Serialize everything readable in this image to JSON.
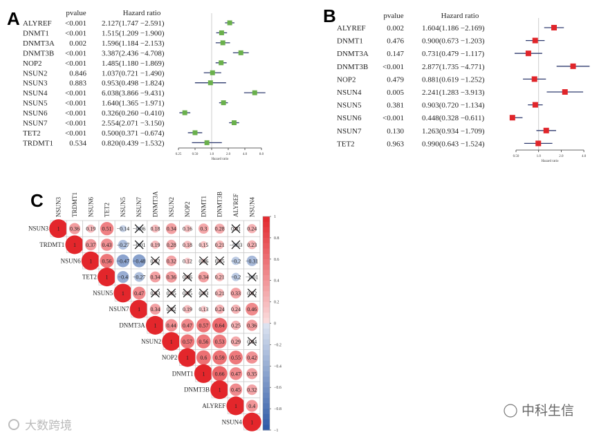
{
  "panels": {
    "a": "A",
    "b": "B",
    "c": "C"
  },
  "chart_data": [
    {
      "type": "forest",
      "panel": "A",
      "headers": {
        "pvalue": "pvalue",
        "hr": "Hazard ratio"
      },
      "xlabel": "Hazard ratio",
      "xscale": "log2",
      "xticks": [
        "0.25",
        "0.50",
        "1.0",
        "2.0",
        "4.0",
        "8.0"
      ],
      "xlim": [
        0.25,
        8.0
      ],
      "marker_color": "#6ab04c",
      "line_color": "#2e3a6e",
      "rows": [
        {
          "gene": "ALYREF",
          "p": "<0.001",
          "hr": 2.127,
          "lo": 1.747,
          "hi": 2.591,
          "text": "2.127(1.747  −2.591)"
        },
        {
          "gene": "DNMT1",
          "p": "<0.001",
          "hr": 1.515,
          "lo": 1.209,
          "hi": 1.9,
          "text": "1.515(1.209  −1.900)"
        },
        {
          "gene": "DNMT3A",
          "p": "0.002",
          "hr": 1.596,
          "lo": 1.184,
          "hi": 2.153,
          "text": "1.596(1.184  −2.153)"
        },
        {
          "gene": "DNMT3B",
          "p": "<0.001",
          "hr": 3.387,
          "lo": 2.436,
          "hi": 4.708,
          "text": "3.387(2.436  −4.708)"
        },
        {
          "gene": "NOP2",
          "p": "<0.001",
          "hr": 1.485,
          "lo": 1.18,
          "hi": 1.869,
          "text": "1.485(1.180  −1.869)"
        },
        {
          "gene": "NSUN2",
          "p": "0.846",
          "hr": 1.037,
          "lo": 0.721,
          "hi": 1.49,
          "text": "1.037(0.721  −1.490)"
        },
        {
          "gene": "NSUN3",
          "p": "0.883",
          "hr": 0.953,
          "lo": 0.498,
          "hi": 1.824,
          "text": "0.953(0.498  −1.824)"
        },
        {
          "gene": "NSUN4",
          "p": "<0.001",
          "hr": 6.038,
          "lo": 3.866,
          "hi": 9.431,
          "text": "6.038(3.866  −9.431)"
        },
        {
          "gene": "NSUN5",
          "p": "<0.001",
          "hr": 1.64,
          "lo": 1.365,
          "hi": 1.971,
          "text": "1.640(1.365  −1.971)"
        },
        {
          "gene": "NSUN6",
          "p": "<0.001",
          "hr": 0.326,
          "lo": 0.26,
          "hi": 0.41,
          "text": "0.326(0.260  −0.410)"
        },
        {
          "gene": "NSUN7",
          "p": "<0.001",
          "hr": 2.554,
          "lo": 2.071,
          "hi": 3.15,
          "text": "2.554(2.071  −3.150)"
        },
        {
          "gene": "TET2",
          "p": "<0.001",
          "hr": 0.5,
          "lo": 0.371,
          "hi": 0.674,
          "text": "0.500(0.371  −0.674)"
        },
        {
          "gene": "TRDMT1",
          "p": "0.534",
          "hr": 0.82,
          "lo": 0.439,
          "hi": 1.532,
          "text": "0.820(0.439  −1.532)"
        }
      ]
    },
    {
      "type": "forest",
      "panel": "B",
      "headers": {
        "pvalue": "pvalue",
        "hr": "Hazard ratio"
      },
      "xlabel": "Hazard ratio",
      "xscale": "log2",
      "xticks": [
        "0.50",
        "1.0",
        "2.0",
        "4.0"
      ],
      "xlim": [
        0.5,
        4.0
      ],
      "marker_color": "#e0252a",
      "line_color": "#2e3a6e",
      "rows": [
        {
          "gene": "ALYREF",
          "p": "0.002",
          "hr": 1.604,
          "lo": 1.186,
          "hi": 2.169,
          "text": "1.604(1.186  −2.169)"
        },
        {
          "gene": "DNMT1",
          "p": "0.476",
          "hr": 0.9,
          "lo": 0.673,
          "hi": 1.203,
          "text": "0.900(0.673  −1.203)"
        },
        {
          "gene": "DNMT3A",
          "p": "0.147",
          "hr": 0.731,
          "lo": 0.479,
          "hi": 1.117,
          "text": "0.731(0.479  −1.117)"
        },
        {
          "gene": "DNMT3B",
          "p": "<0.001",
          "hr": 2.877,
          "lo": 1.735,
          "hi": 4.771,
          "text": "2.877(1.735  −4.771)"
        },
        {
          "gene": "NOP2",
          "p": "0.479",
          "hr": 0.881,
          "lo": 0.619,
          "hi": 1.252,
          "text": "0.881(0.619  −1.252)"
        },
        {
          "gene": "NSUN4",
          "p": "0.005",
          "hr": 2.241,
          "lo": 1.283,
          "hi": 3.913,
          "text": "2.241(1.283  −3.913)"
        },
        {
          "gene": "NSUN5",
          "p": "0.381",
          "hr": 0.903,
          "lo": 0.72,
          "hi": 1.134,
          "text": "0.903(0.720  −1.134)"
        },
        {
          "gene": "NSUN6",
          "p": "<0.001",
          "hr": 0.448,
          "lo": 0.328,
          "hi": 0.611,
          "text": "0.448(0.328  −0.611)"
        },
        {
          "gene": "NSUN7",
          "p": "0.130",
          "hr": 1.263,
          "lo": 0.934,
          "hi": 1.709,
          "text": "1.263(0.934  −1.709)"
        },
        {
          "gene": "TET2",
          "p": "0.963",
          "hr": 0.99,
          "lo": 0.643,
          "hi": 1.524,
          "text": "0.990(0.643  −1.524)"
        }
      ]
    },
    {
      "type": "heatmap",
      "panel": "C",
      "subtype": "correlation-upper-triangle",
      "genes": [
        "NSUN3",
        "TRDMT1",
        "NSUN6",
        "TET2",
        "NSUN5",
        "NSUN7",
        "DNMT3A",
        "NSUN2",
        "NOP2",
        "DNMT1",
        "DNMT3B",
        "ALYREF",
        "NSUN4"
      ],
      "upper_rows": [
        [
          1,
          0.36,
          0.19,
          0.51,
          -0.14,
          -0.06,
          0.18,
          0.34,
          0.16,
          0.3,
          0.28,
          0.01,
          0.24
        ],
        [
          1,
          0.37,
          0.43,
          -0.27,
          -0.01,
          0.19,
          0.28,
          0.18,
          0.15,
          0.21,
          -0.03,
          0.23
        ],
        [
          1,
          0.56,
          -0.47,
          -0.48,
          0.02,
          0.32,
          0.12,
          0.06,
          0.05,
          -0.2,
          -0.31
        ],
        [
          1,
          -0.4,
          -0.27,
          0.34,
          0.36,
          0.06,
          0.34,
          0.21,
          -0.2,
          -0.01
        ],
        [
          1,
          0.47,
          0.03,
          0.05,
          0.05,
          0.03,
          0.21,
          0.33,
          0.02
        ],
        [
          1,
          0.34,
          0.02,
          0.19,
          0.13,
          0.24,
          0.24,
          0.46
        ],
        [
          1,
          0.44,
          0.47,
          0.57,
          0.64,
          0.25,
          0.36
        ],
        [
          1,
          0.57,
          0.56,
          0.53,
          0.29,
          0.04
        ],
        [
          1,
          0.6,
          0.59,
          0.55,
          0.42
        ],
        [
          1,
          0.66,
          0.47,
          0.35
        ],
        [
          1,
          0.45,
          0.32
        ],
        [
          1,
          0.4
        ],
        [
          1
        ]
      ],
      "insignificant": [
        [
          0,
          5
        ],
        [
          0,
          11
        ],
        [
          1,
          5
        ],
        [
          1,
          11
        ],
        [
          2,
          6
        ],
        [
          2,
          9
        ],
        [
          2,
          10
        ],
        [
          3,
          8
        ],
        [
          3,
          12
        ],
        [
          4,
          6
        ],
        [
          4,
          7
        ],
        [
          4,
          8
        ],
        [
          4,
          9
        ],
        [
          4,
          12
        ],
        [
          5,
          7
        ],
        [
          7,
          12
        ]
      ],
      "colorbar": {
        "ticks": [
          "1",
          "0.8",
          "0.6",
          "0.4",
          "0.2",
          "0",
          "−0.2",
          "−0.4",
          "−0.6",
          "−0.8",
          "−1"
        ],
        "range": [
          -1,
          1
        ],
        "pos_color": "#e3262b",
        "neg_color": "#2c58a6"
      }
    }
  ],
  "watermarks": {
    "left": "大数跨境",
    "right": "中科生信"
  }
}
